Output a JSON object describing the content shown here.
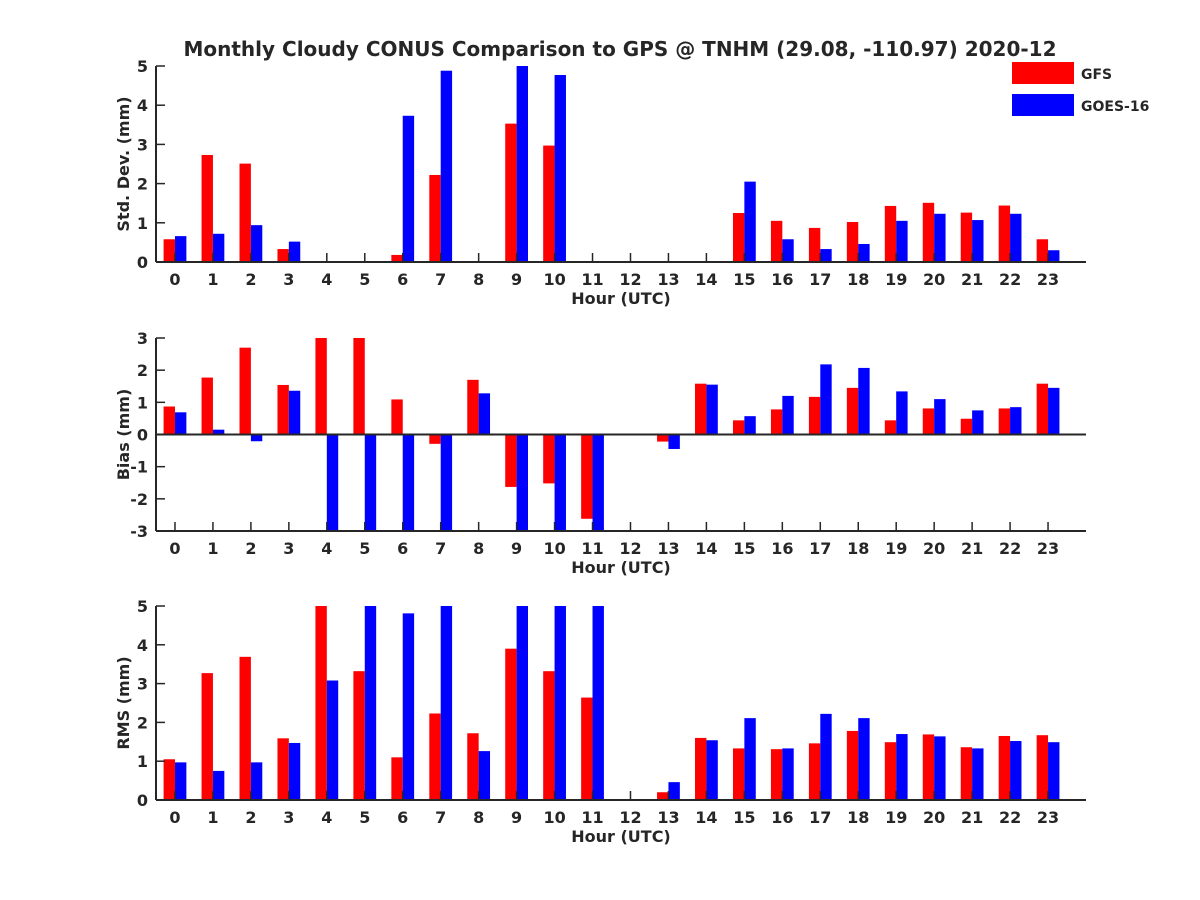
{
  "title": "Monthly Cloudy CONUS Comparison to GPS @ TNHM (29.08, -110.97) 2020-12",
  "legend": {
    "placement": "top-right",
    "entries": [
      {
        "name": "GFS",
        "color": "#ff0000"
      },
      {
        "name": "GOES-16",
        "color": "#0000ff"
      }
    ]
  },
  "chart_data": [
    {
      "type": "bar",
      "xlabel": "Hour (UTC)",
      "ylabel": "Std. Dev. (mm)",
      "ylim": [
        0,
        5
      ],
      "yticks": [
        0,
        1,
        2,
        3,
        4,
        5
      ],
      "categories": [
        "0",
        "1",
        "2",
        "3",
        "4",
        "5",
        "6",
        "7",
        "8",
        "9",
        "10",
        "11",
        "12",
        "13",
        "14",
        "15",
        "16",
        "17",
        "18",
        "19",
        "20",
        "21",
        "22",
        "23"
      ],
      "series": [
        {
          "name": "GFS",
          "color": "#ff0000",
          "values": [
            0.58,
            2.73,
            2.51,
            0.33,
            null,
            null,
            0.18,
            2.22,
            null,
            3.53,
            2.97,
            null,
            null,
            null,
            null,
            1.25,
            1.05,
            0.87,
            1.02,
            1.43,
            1.51,
            1.26,
            1.44,
            0.58
          ]
        },
        {
          "name": "GOES-16",
          "color": "#0000ff",
          "values": [
            0.66,
            0.72,
            0.94,
            0.52,
            null,
            null,
            3.73,
            4.88,
            null,
            5.0,
            4.77,
            null,
            null,
            null,
            null,
            2.05,
            0.58,
            0.33,
            0.46,
            1.05,
            1.23,
            1.07,
            1.23,
            0.3
          ]
        }
      ]
    },
    {
      "type": "bar",
      "xlabel": "Hour (UTC)",
      "ylabel": "Bias (mm)",
      "ylim": [
        -3,
        3
      ],
      "yticks": [
        -3,
        -2,
        -1,
        0,
        1,
        2,
        3
      ],
      "zero_line": true,
      "categories": [
        "0",
        "1",
        "2",
        "3",
        "4",
        "5",
        "6",
        "7",
        "8",
        "9",
        "10",
        "11",
        "12",
        "13",
        "14",
        "15",
        "16",
        "17",
        "18",
        "19",
        "20",
        "21",
        "22",
        "23"
      ],
      "series": [
        {
          "name": "GFS",
          "color": "#ff0000",
          "values": [
            0.87,
            1.77,
            2.7,
            1.54,
            3.0,
            3.0,
            1.09,
            -0.29,
            1.7,
            -1.63,
            -1.52,
            -2.62,
            null,
            -0.22,
            1.58,
            0.44,
            0.78,
            1.17,
            1.45,
            0.44,
            0.81,
            0.49,
            0.81,
            1.58
          ]
        },
        {
          "name": "GOES-16",
          "color": "#0000ff",
          "values": [
            0.69,
            0.15,
            -0.21,
            1.36,
            -3.0,
            -3.0,
            -3.0,
            -3.0,
            1.28,
            -3.0,
            -3.0,
            -3.0,
            null,
            -0.45,
            1.55,
            0.57,
            1.2,
            2.18,
            2.07,
            1.34,
            1.1,
            0.75,
            0.85,
            1.45
          ]
        }
      ]
    },
    {
      "type": "bar",
      "xlabel": "Hour (UTC)",
      "ylabel": "RMS (mm)",
      "ylim": [
        0,
        5
      ],
      "yticks": [
        0,
        1,
        2,
        3,
        4,
        5
      ],
      "categories": [
        "0",
        "1",
        "2",
        "3",
        "4",
        "5",
        "6",
        "7",
        "8",
        "9",
        "10",
        "11",
        "12",
        "13",
        "14",
        "15",
        "16",
        "17",
        "18",
        "19",
        "20",
        "21",
        "22",
        "23"
      ],
      "series": [
        {
          "name": "GFS",
          "color": "#ff0000",
          "values": [
            1.05,
            3.27,
            3.69,
            1.59,
            5.0,
            3.32,
            1.1,
            2.23,
            1.72,
            3.9,
            3.32,
            2.64,
            null,
            0.2,
            1.6,
            1.33,
            1.31,
            1.46,
            1.78,
            1.49,
            1.69,
            1.36,
            1.65,
            1.67
          ]
        },
        {
          "name": "GOES-16",
          "color": "#0000ff",
          "values": [
            0.97,
            0.75,
            0.97,
            1.47,
            3.08,
            5.0,
            4.81,
            5.0,
            1.26,
            5.0,
            5.0,
            5.0,
            null,
            0.46,
            1.54,
            2.11,
            1.33,
            2.22,
            2.11,
            1.7,
            1.64,
            1.33,
            1.52,
            1.49
          ]
        }
      ]
    }
  ]
}
